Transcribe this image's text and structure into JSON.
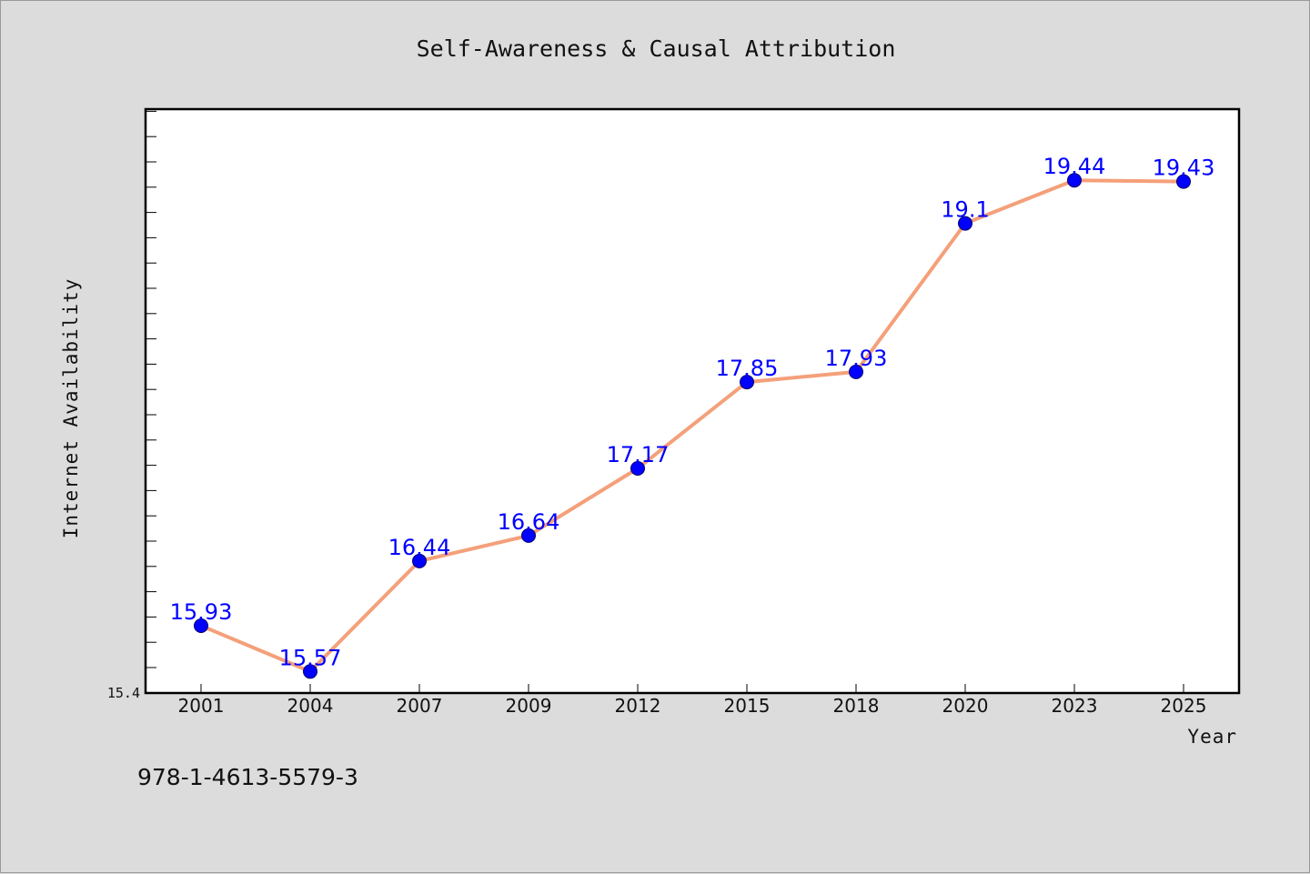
{
  "chart_data": {
    "type": "line",
    "title": "Self-Awareness & Causal Attribution",
    "xlabel": "Year",
    "ylabel": "Internet Availability",
    "categories": [
      "2001",
      "2004",
      "2007",
      "2009",
      "2012",
      "2015",
      "2018",
      "2020",
      "2023",
      "2025"
    ],
    "series": [
      {
        "values": [
          15.93,
          15.57,
          16.44,
          16.64,
          17.17,
          17.85,
          17.93,
          19.1,
          19.44,
          19.43
        ]
      }
    ],
    "data_labels": [
      "15.93",
      "15.57",
      "16.44",
      "16.64",
      "17.17",
      "17.85",
      "17.93",
      "19.1",
      "19.44",
      "19.43"
    ],
    "ylim": [
      15.4,
      20.0
    ],
    "y_tick_labels": [
      "15.4"
    ],
    "grid": false,
    "legend": "none",
    "colors": {
      "line": "#f4a07a",
      "marker": "#0000ff",
      "data_label": "#0000ff",
      "background": "#dcdcdc",
      "plot_area": "#ffffff"
    }
  },
  "footer": {
    "isbn": "978-1-4613-5579-3"
  }
}
